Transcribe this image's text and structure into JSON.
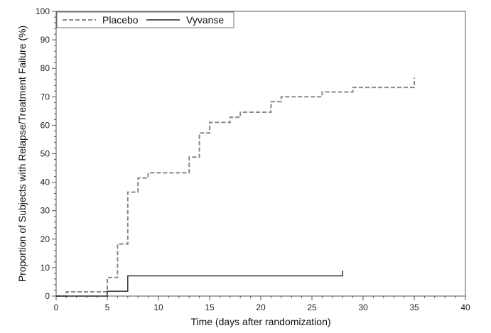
{
  "chart_data": {
    "type": "line",
    "step": true,
    "xlabel": "Time (days after randomization)",
    "ylabel": "Proportion of Subjects with Relapse/Treatment Failure (%)",
    "xlim": [
      0,
      40
    ],
    "ylim": [
      0,
      100
    ],
    "x_ticks": [
      "0",
      "5",
      "10",
      "15",
      "20",
      "25",
      "30",
      "35",
      "40"
    ],
    "y_ticks": [
      "0",
      "10",
      "20",
      "30",
      "40",
      "50",
      "60",
      "70",
      "80",
      "90",
      "100"
    ],
    "grid": false,
    "legend_position": "top-left",
    "series": [
      {
        "name": "Placebo",
        "style": "dashed",
        "color": "#888888",
        "x": [
          0,
          1,
          5,
          6,
          7,
          8,
          9,
          13,
          14,
          15,
          17,
          18,
          21,
          22,
          26,
          29,
          35,
          35
        ],
        "y": [
          0,
          1.5,
          6.5,
          18.3,
          36.5,
          41.5,
          43.3,
          48.8,
          57.3,
          61.0,
          62.8,
          64.6,
          68.3,
          70.0,
          71.7,
          73.3,
          73.3,
          76.7
        ]
      },
      {
        "name": "Vyvanse",
        "style": "solid",
        "color": "#222222",
        "x": [
          0,
          5,
          7,
          28,
          28
        ],
        "y": [
          0,
          1.7,
          7.1,
          7.1,
          8.9
        ]
      }
    ]
  }
}
